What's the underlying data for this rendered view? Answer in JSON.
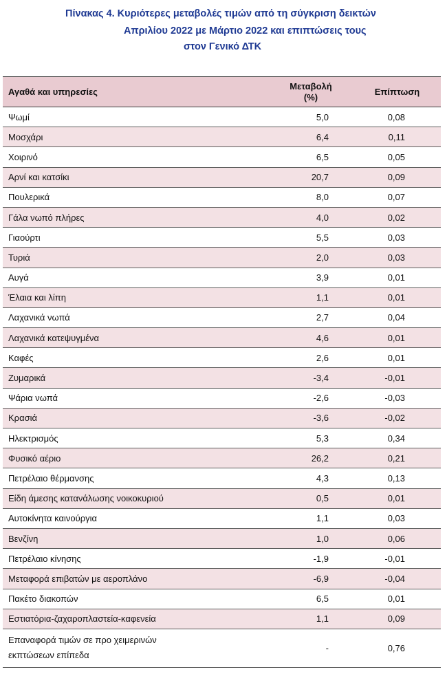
{
  "title": {
    "line1": "Πίνακας  4. Κυριότερες μεταβολές τιμών από τη σύγκριση δεικτών",
    "line2": "Απριλίου 2022 με Μάρτιο 2022 και επιπτώσεις τους",
    "line3": "στον Γενικό ΔΤΚ"
  },
  "table": {
    "headers": {
      "item": "Αγαθά και υπηρεσίες",
      "change_line1": "Μεταβολή",
      "change_line2": "(%)",
      "impact": "Επίπτωση"
    },
    "rows": [
      {
        "item": "Ψωμί",
        "change": "5,0",
        "impact": "0,08"
      },
      {
        "item": "Μοσχάρι",
        "change": "6,4",
        "impact": "0,11"
      },
      {
        "item": "Χοιρινό",
        "change": "6,5",
        "impact": "0,05"
      },
      {
        "item": "Αρνί και κατσίκι",
        "change": "20,7",
        "impact": "0,09"
      },
      {
        "item": "Πουλερικά",
        "change": "8,0",
        "impact": "0,07"
      },
      {
        "item": "Γάλα νωπό πλήρες",
        "change": "4,0",
        "impact": "0,02"
      },
      {
        "item": "Γιαούρτι",
        "change": "5,5",
        "impact": "0,03"
      },
      {
        "item": "Τυριά",
        "change": "2,0",
        "impact": "0,03"
      },
      {
        "item": "Αυγά",
        "change": "3,9",
        "impact": "0,01"
      },
      {
        "item": "Έλαια και λίπη",
        "change": "1,1",
        "impact": "0,01"
      },
      {
        "item": "Λαχανικά νωπά",
        "change": "2,7",
        "impact": "0,04"
      },
      {
        "item": "Λαχανικά κατεψυγμένα",
        "change": "4,6",
        "impact": "0,01"
      },
      {
        "item": "Καφές",
        "change": "2,6",
        "impact": "0,01"
      },
      {
        "item": "Ζυμαρικά",
        "change": "-3,4",
        "impact": "-0,01"
      },
      {
        "item": "Ψάρια νωπά",
        "change": "-2,6",
        "impact": "-0,03"
      },
      {
        "item": "Κρασιά",
        "change": "-3,6",
        "impact": "-0,02"
      },
      {
        "item": "Ηλεκτρισμός",
        "change": "5,3",
        "impact": "0,34"
      },
      {
        "item": "Φυσικό αέριο",
        "change": "26,2",
        "impact": "0,21"
      },
      {
        "item": "Πετρέλαιο θέρμανσης",
        "change": "4,3",
        "impact": "0,13"
      },
      {
        "item": "Είδη άμεσης κατανάλωσης νοικοκυριού",
        "change": "0,5",
        "impact": "0,01"
      },
      {
        "item": "Αυτοκίνητα καινούργια",
        "change": "1,1",
        "impact": "0,03"
      },
      {
        "item": "Βενζίνη",
        "change": "1,0",
        "impact": "0,06"
      },
      {
        "item": "Πετρέλαιο κίνησης",
        "change": "-1,9",
        "impact": "-0,01"
      },
      {
        "item": "Μεταφορά επιβατών με αεροπλάνο",
        "change": "-6,9",
        "impact": "-0,04"
      },
      {
        "item": "Πακέτο διακοπών",
        "change": "6,5",
        "impact": "0,01"
      },
      {
        "item": "Εστιατόρια-ζαχαροπλαστεία-καφενεία",
        "change": "1,1",
        "impact": "0,09"
      },
      {
        "item_line1": "Επαναφορά τιμών σε προ χειμερινών",
        "item_line2": "εκπτώσεων επίπεδα",
        "change": "-",
        "impact": "0,76"
      }
    ]
  }
}
